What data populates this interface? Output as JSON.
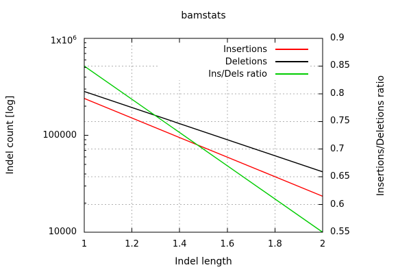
{
  "chart_data": {
    "type": "line",
    "title": "bamstats",
    "xlabel": "Indel length",
    "ylabel_left": "Indel count [log]",
    "ylabel_right": "Insertions/Deletions ratio",
    "x_range": [
      1,
      2
    ],
    "y_left_log_range": [
      10000,
      1000000
    ],
    "y_right_range": [
      0.55,
      0.9
    ],
    "grid": true,
    "grid_style": "dashed",
    "legend_position": "top-right-inside",
    "x_ticks": [
      {
        "value": 1,
        "label": "1"
      },
      {
        "value": 1.2,
        "label": "1.2"
      },
      {
        "value": 1.4,
        "label": "1.4"
      },
      {
        "value": 1.6,
        "label": "1.6"
      },
      {
        "value": 1.8,
        "label": "1.8"
      },
      {
        "value": 2,
        "label": "2"
      }
    ],
    "y_left_ticks": [
      {
        "value": 10000,
        "label": "10000"
      },
      {
        "value": 100000,
        "label": "100000"
      },
      {
        "value": 1000000,
        "label": "1x10^6"
      }
    ],
    "y_right_ticks": [
      {
        "value": 0.55,
        "label": "0.55"
      },
      {
        "value": 0.6,
        "label": "0.6"
      },
      {
        "value": 0.65,
        "label": "0.65"
      },
      {
        "value": 0.7,
        "label": "0.7"
      },
      {
        "value": 0.75,
        "label": "0.75"
      },
      {
        "value": 0.8,
        "label": "0.8"
      },
      {
        "value": 0.85,
        "label": "0.85"
      },
      {
        "value": 0.9,
        "label": "0.9"
      }
    ],
    "series": [
      {
        "name": "Insertions",
        "color": "#ff0000",
        "axis": "left",
        "x": [
          1,
          2
        ],
        "y": [
          240000,
          23500
        ]
      },
      {
        "name": "Deletions",
        "color": "#000000",
        "axis": "left",
        "x": [
          1,
          2
        ],
        "y": [
          283000,
          42000
        ]
      },
      {
        "name": "Ins/Dels ratio",
        "color": "#00cc00",
        "axis": "right",
        "x": [
          1,
          2
        ],
        "y": [
          0.85,
          0.55
        ]
      }
    ],
    "colors": {
      "background": "#ffffff",
      "axis": "#000000",
      "grid": "#b0b0b0",
      "text": "#000000"
    }
  }
}
